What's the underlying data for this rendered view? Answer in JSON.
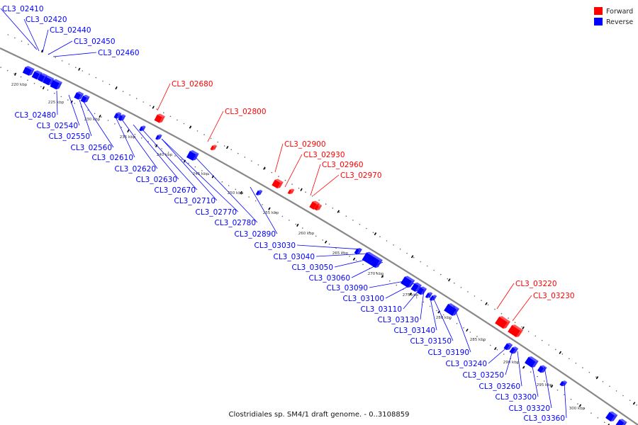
{
  "caption": "Clostridiales sp. SM4/1 draft genome. - 0..3108859",
  "legend": [
    {
      "label": "Forward",
      "color": "#ff0000"
    },
    {
      "label": "Reverse",
      "color": "#0000ff"
    }
  ],
  "colors": {
    "forward": "#ff0000",
    "reverse": "#0000ff",
    "backbone": "#888888"
  },
  "scale_ticks": [
    "220 kbp",
    "225 kbp",
    "230 kbp",
    "235 kbp",
    "240 kbp",
    "245 kbp",
    "250 kbp",
    "255 kbp",
    "260 kbp",
    "265 kbp",
    "270 kbp",
    "275 kbp",
    "280 kbp",
    "285 kbp",
    "290 kbp",
    "295 kbp",
    "300 kbp"
  ],
  "forward_genes": [
    "CL3_02680",
    "CL3_02800",
    "CL3_02900",
    "CL3_02930",
    "CL3_02960",
    "CL3_02970",
    "CL3_03220",
    "CL3_03230"
  ],
  "reverse_genes_top": [
    "CL3_02410",
    "CL3_02420",
    "CL3_02440",
    "CL3_02450",
    "CL3_02460"
  ],
  "reverse_genes": [
    "CL3_02480",
    "CL3_02540",
    "CL3_02550",
    "CL3_02560",
    "CL3_02610",
    "CL3_02620",
    "CL3_02630",
    "CL3_02670",
    "CL3_02710",
    "CL3_02770",
    "CL3_02780",
    "CL3_02890",
    "CL3_03030",
    "CL3_03040",
    "CL3_03050",
    "CL3_03060",
    "CL3_03090",
    "CL3_03100",
    "CL3_03110",
    "CL3_03130",
    "CL3_03140",
    "CL3_03150",
    "CL3_03190",
    "CL3_03240",
    "CL3_03250",
    "CL3_03260",
    "CL3_03300",
    "CL3_03320",
    "CL3_03360"
  ]
}
